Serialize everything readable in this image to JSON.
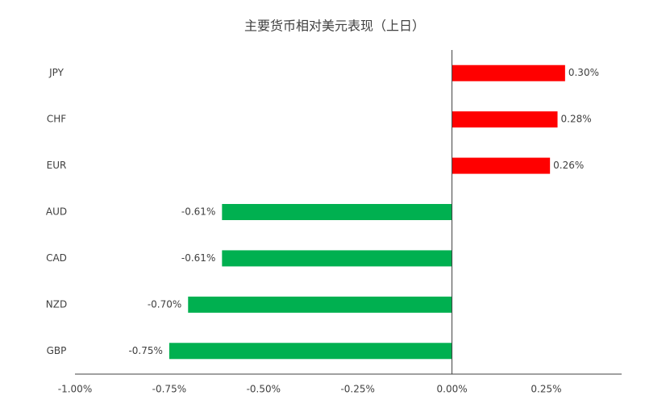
{
  "chart_data": {
    "type": "bar",
    "orientation": "horizontal",
    "title": "主要货币相对美元表现（上日）",
    "categories": [
      "JPY",
      "CHF",
      "EUR",
      "AUD",
      "CAD",
      "NZD",
      "GBP"
    ],
    "values": [
      0.3,
      0.28,
      0.26,
      -0.61,
      -0.61,
      -0.7,
      -0.75
    ],
    "value_labels": [
      "0.30%",
      "0.28%",
      "0.26%",
      "-0.61%",
      "-0.61%",
      "-0.70%",
      "-0.75%"
    ],
    "colors": [
      "#ff0000",
      "#ff0000",
      "#ff0000",
      "#00b050",
      "#00b050",
      "#00b050",
      "#00b050"
    ],
    "xlim": [
      -1.0,
      0.45
    ],
    "xticks": [
      {
        "value": -1.0,
        "label": "-1.00%"
      },
      {
        "value": -0.75,
        "label": "-0.75%"
      },
      {
        "value": -0.5,
        "label": "-0.50%"
      },
      {
        "value": -0.25,
        "label": "-0.25%"
      },
      {
        "value": 0,
        "label": "0.00%"
      },
      {
        "value": 0.25,
        "label": "0.25%"
      }
    ],
    "grid": false
  }
}
